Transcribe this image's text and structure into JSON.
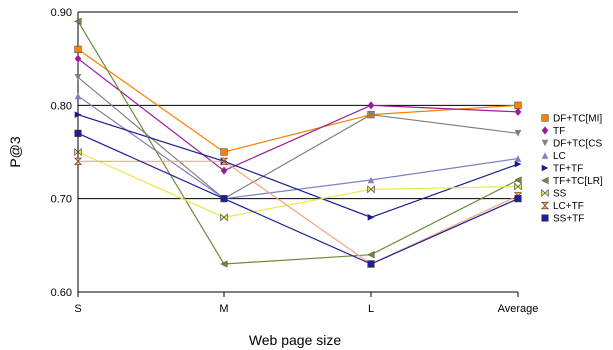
{
  "chart_data": {
    "type": "line",
    "xlabel": "Web page size",
    "ylabel": "P@3",
    "categories": [
      "S",
      "M",
      "L",
      "Average"
    ],
    "ylim": [
      0.6,
      0.9
    ],
    "yticks": [
      "0.60",
      "0.70",
      "0.80",
      "0.90"
    ],
    "grid": "horizontal",
    "legend_position": "right",
    "series": [
      {
        "name": "DF+TC[MI]",
        "color": "#FF7F00",
        "marker": "square",
        "values": [
          0.86,
          0.75,
          0.79,
          0.8
        ]
      },
      {
        "name": "TF",
        "color": "#9B1B9B",
        "marker": "diamond",
        "values": [
          0.85,
          0.73,
          0.8,
          0.793
        ]
      },
      {
        "name": "DF+TC[CS",
        "color": "#808080",
        "marker": "triangle-down",
        "values": [
          0.83,
          0.7,
          0.79,
          0.77
        ]
      },
      {
        "name": "LC",
        "color": "#8080C0",
        "marker": "triangle-up",
        "values": [
          0.81,
          0.7,
          0.72,
          0.743
        ]
      },
      {
        "name": "TF+TF",
        "color": "#1A1A8C",
        "marker": "triangle-right",
        "values": [
          0.79,
          0.74,
          0.68,
          0.737
        ]
      },
      {
        "name": "TF+TC[LR]",
        "color": "#6E8B3D",
        "marker": "triangle-left",
        "values": [
          0.89,
          0.63,
          0.64,
          0.72
        ]
      },
      {
        "name": "SS",
        "color": "#E8E84A",
        "marker": "bowtie",
        "values": [
          0.75,
          0.68,
          0.71,
          0.713
        ]
      },
      {
        "name": "LC+TF",
        "color": "#F4A582",
        "marker": "hourglass",
        "values": [
          0.74,
          0.74,
          0.63,
          0.703
        ]
      },
      {
        "name": "SS+TF",
        "color": "#1F1F99",
        "marker": "square",
        "values": [
          0.77,
          0.7,
          0.63,
          0.7
        ]
      }
    ]
  }
}
